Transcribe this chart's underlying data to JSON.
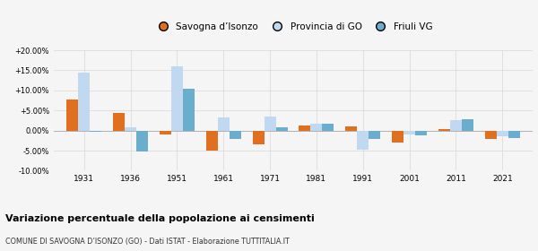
{
  "years": [
    1931,
    1936,
    1951,
    1961,
    1971,
    1981,
    1991,
    2001,
    2011,
    2021
  ],
  "savogna": [
    7.8,
    4.4,
    -1.0,
    -5.1,
    -3.5,
    1.2,
    1.0,
    -3.0,
    0.4,
    -2.0
  ],
  "provincia": [
    14.5,
    0.8,
    16.0,
    3.2,
    3.5,
    1.7,
    -4.8,
    -1.0,
    2.7,
    -1.5
  ],
  "friuli": [
    -0.3,
    -5.2,
    10.5,
    -2.0,
    0.7,
    1.8,
    -2.0,
    -1.2,
    2.9,
    -1.8
  ],
  "color_savogna": "#e07020",
  "color_provincia": "#c0d8f0",
  "color_friuli": "#6aadcc",
  "title": "Variazione percentuale della popolazione ai censimenti",
  "subtitle": "COMUNE DI SAVOGNA D’ISONZO (GO) - Dati ISTAT - Elaborazione TUTTITALIA.IT",
  "legend_labels": [
    "Savogna d’Isonzo",
    "Provincia di GO",
    "Friuli VG"
  ],
  "ylim": [
    -10.0,
    20.0
  ],
  "yticks": [
    -10.0,
    -5.0,
    0.0,
    5.0,
    10.0,
    15.0,
    20.0
  ],
  "ytick_labels": [
    "-10.00%",
    "-5.00%",
    "0.00%",
    "+5.00%",
    "+10.00%",
    "+15.00%",
    "+20.00%"
  ],
  "bar_width": 0.25,
  "background_color": "#f5f5f5",
  "grid_color": "#d8d8d8"
}
